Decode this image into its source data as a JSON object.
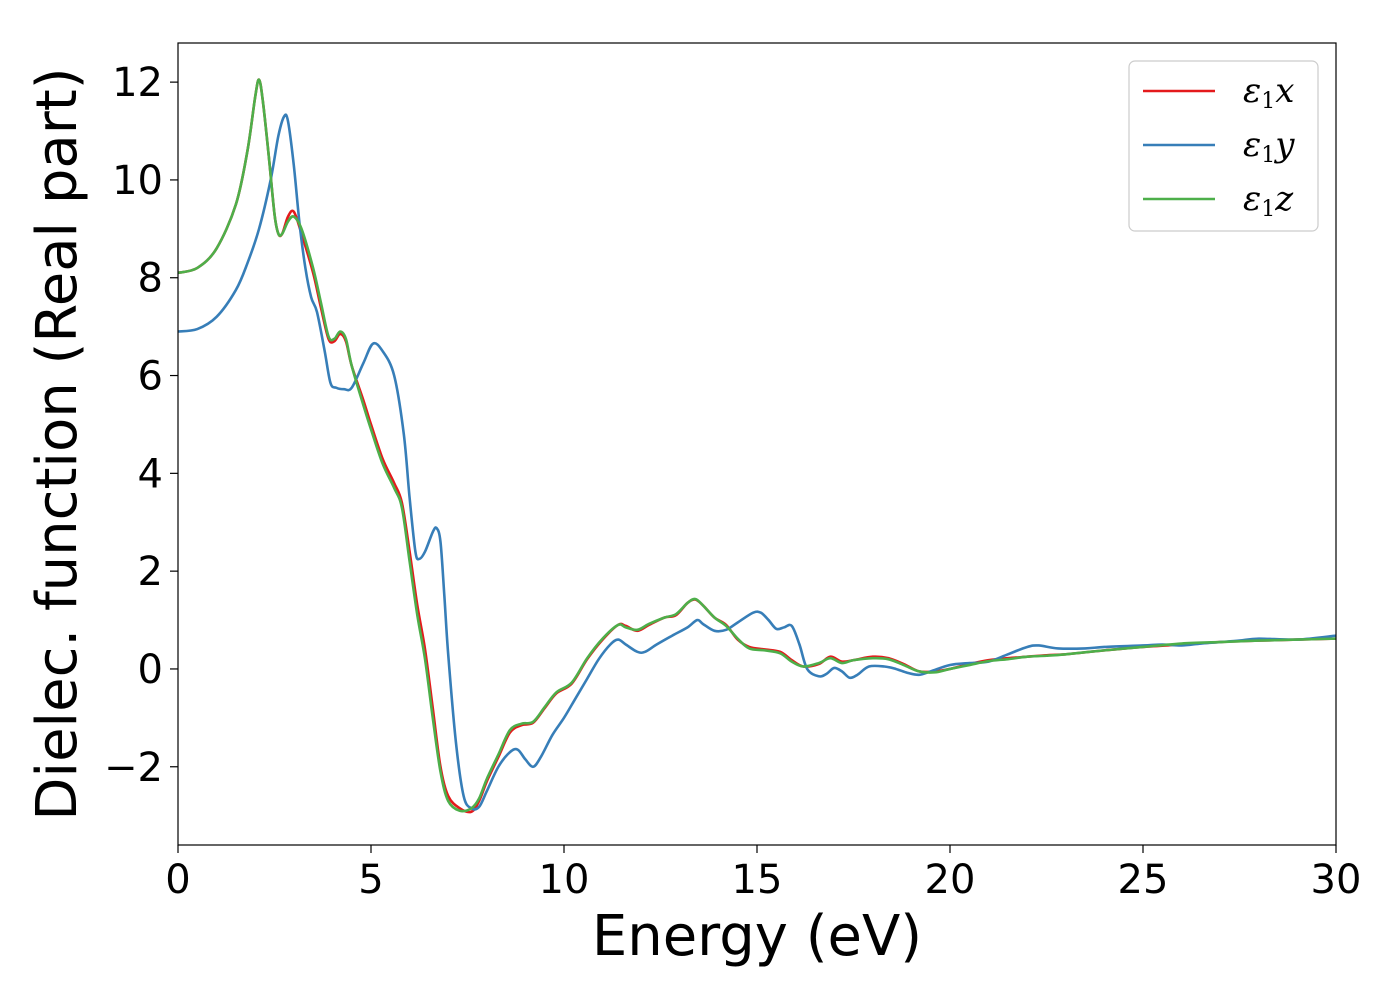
{
  "chart_data": {
    "type": "line",
    "title": "",
    "xlabel": "Energy (eV)",
    "ylabel": "Dielec. function (Real part)",
    "xlim": [
      0,
      30
    ],
    "ylim": [
      -3.6,
      12.8
    ],
    "xticks": [
      0,
      5,
      10,
      15,
      20,
      25,
      30
    ],
    "xtick_labels": [
      "0",
      "5",
      "10",
      "15",
      "20",
      "25",
      "30"
    ],
    "yticks": [
      -2,
      0,
      2,
      4,
      6,
      8,
      10,
      12
    ],
    "ytick_labels": [
      "−2",
      "0",
      "2",
      "4",
      "6",
      "8",
      "10",
      "12"
    ],
    "grid": false,
    "legend_position": "top-right",
    "colors": {
      "x": "#e41a1c",
      "y": "#377eb8",
      "z": "#4daf4a"
    },
    "series": [
      {
        "name": "ε1x",
        "legend": {
          "symbol": "ε",
          "sub": "1",
          "axis": "x"
        },
        "color": "#e41a1c",
        "points": [
          [
            0,
            8.1
          ],
          [
            0.5,
            8.2
          ],
          [
            1.0,
            8.6
          ],
          [
            1.5,
            9.5
          ],
          [
            1.8,
            10.6
          ],
          [
            2.0,
            11.7
          ],
          [
            2.1,
            12.05
          ],
          [
            2.2,
            11.6
          ],
          [
            2.35,
            10.5
          ],
          [
            2.5,
            9.3
          ],
          [
            2.6,
            8.9
          ],
          [
            2.7,
            8.9
          ],
          [
            2.85,
            9.25
          ],
          [
            3.0,
            9.35
          ],
          [
            3.2,
            8.9
          ],
          [
            3.5,
            8.1
          ],
          [
            3.7,
            7.4
          ],
          [
            3.9,
            6.75
          ],
          [
            4.05,
            6.7
          ],
          [
            4.2,
            6.85
          ],
          [
            4.35,
            6.7
          ],
          [
            4.5,
            6.2
          ],
          [
            4.8,
            5.5
          ],
          [
            5.0,
            5.0
          ],
          [
            5.3,
            4.3
          ],
          [
            5.6,
            3.8
          ],
          [
            5.8,
            3.4
          ],
          [
            6.0,
            2.4
          ],
          [
            6.2,
            1.3
          ],
          [
            6.4,
            0.4
          ],
          [
            6.6,
            -0.8
          ],
          [
            6.8,
            -2.0
          ],
          [
            7.0,
            -2.6
          ],
          [
            7.3,
            -2.85
          ],
          [
            7.6,
            -2.92
          ],
          [
            7.8,
            -2.7
          ],
          [
            8.0,
            -2.3
          ],
          [
            8.3,
            -1.8
          ],
          [
            8.6,
            -1.3
          ],
          [
            8.9,
            -1.15
          ],
          [
            9.2,
            -1.1
          ],
          [
            9.5,
            -0.8
          ],
          [
            9.8,
            -0.5
          ],
          [
            10.2,
            -0.3
          ],
          [
            10.6,
            0.2
          ],
          [
            11.0,
            0.6
          ],
          [
            11.4,
            0.9
          ],
          [
            11.6,
            0.88
          ],
          [
            11.9,
            0.78
          ],
          [
            12.2,
            0.9
          ],
          [
            12.6,
            1.05
          ],
          [
            12.9,
            1.1
          ],
          [
            13.2,
            1.35
          ],
          [
            13.4,
            1.42
          ],
          [
            13.6,
            1.3
          ],
          [
            13.9,
            1.05
          ],
          [
            14.2,
            0.9
          ],
          [
            14.5,
            0.6
          ],
          [
            14.8,
            0.45
          ],
          [
            15.2,
            0.4
          ],
          [
            15.6,
            0.35
          ],
          [
            15.9,
            0.18
          ],
          [
            16.2,
            0.05
          ],
          [
            16.6,
            0.1
          ],
          [
            16.9,
            0.25
          ],
          [
            17.2,
            0.15
          ],
          [
            17.5,
            0.18
          ],
          [
            18.0,
            0.25
          ],
          [
            18.4,
            0.22
          ],
          [
            18.8,
            0.1
          ],
          [
            19.2,
            -0.05
          ],
          [
            19.6,
            -0.05
          ],
          [
            20.0,
            0.0
          ],
          [
            20.5,
            0.1
          ],
          [
            21.0,
            0.18
          ],
          [
            21.5,
            0.22
          ],
          [
            22.0,
            0.25
          ],
          [
            22.5,
            0.28
          ],
          [
            23.0,
            0.3
          ],
          [
            24.0,
            0.38
          ],
          [
            25.0,
            0.45
          ],
          [
            26.0,
            0.5
          ],
          [
            27.0,
            0.55
          ],
          [
            28.0,
            0.58
          ],
          [
            29.0,
            0.6
          ],
          [
            30.0,
            0.62
          ]
        ]
      },
      {
        "name": "ε1y",
        "legend": {
          "symbol": "ε",
          "sub": "1",
          "axis": "y"
        },
        "color": "#377eb8",
        "points": [
          [
            0,
            6.9
          ],
          [
            0.5,
            6.95
          ],
          [
            1.0,
            7.2
          ],
          [
            1.5,
            7.75
          ],
          [
            1.8,
            8.3
          ],
          [
            2.1,
            9.0
          ],
          [
            2.4,
            10.0
          ],
          [
            2.6,
            10.9
          ],
          [
            2.75,
            11.3
          ],
          [
            2.85,
            11.2
          ],
          [
            3.0,
            10.3
          ],
          [
            3.15,
            9.1
          ],
          [
            3.3,
            8.2
          ],
          [
            3.45,
            7.6
          ],
          [
            3.6,
            7.3
          ],
          [
            3.8,
            6.5
          ],
          [
            3.95,
            5.85
          ],
          [
            4.1,
            5.75
          ],
          [
            4.3,
            5.72
          ],
          [
            4.5,
            5.75
          ],
          [
            4.8,
            6.25
          ],
          [
            5.05,
            6.65
          ],
          [
            5.3,
            6.5
          ],
          [
            5.6,
            6.0
          ],
          [
            5.85,
            4.8
          ],
          [
            6.0,
            3.5
          ],
          [
            6.15,
            2.4
          ],
          [
            6.25,
            2.25
          ],
          [
            6.4,
            2.4
          ],
          [
            6.6,
            2.8
          ],
          [
            6.7,
            2.88
          ],
          [
            6.8,
            2.6
          ],
          [
            6.9,
            1.5
          ],
          [
            7.0,
            0.3
          ],
          [
            7.2,
            -1.5
          ],
          [
            7.4,
            -2.6
          ],
          [
            7.6,
            -2.85
          ],
          [
            7.8,
            -2.82
          ],
          [
            8.0,
            -2.5
          ],
          [
            8.3,
            -2.0
          ],
          [
            8.6,
            -1.7
          ],
          [
            8.8,
            -1.65
          ],
          [
            9.0,
            -1.85
          ],
          [
            9.2,
            -2.0
          ],
          [
            9.4,
            -1.8
          ],
          [
            9.7,
            -1.35
          ],
          [
            10.0,
            -1.0
          ],
          [
            10.3,
            -0.6
          ],
          [
            10.6,
            -0.2
          ],
          [
            10.9,
            0.2
          ],
          [
            11.2,
            0.5
          ],
          [
            11.4,
            0.6
          ],
          [
            11.6,
            0.5
          ],
          [
            11.9,
            0.35
          ],
          [
            12.1,
            0.35
          ],
          [
            12.4,
            0.5
          ],
          [
            12.8,
            0.68
          ],
          [
            13.2,
            0.85
          ],
          [
            13.45,
            1.0
          ],
          [
            13.6,
            0.92
          ],
          [
            13.9,
            0.78
          ],
          [
            14.2,
            0.8
          ],
          [
            14.5,
            0.95
          ],
          [
            14.9,
            1.15
          ],
          [
            15.1,
            1.15
          ],
          [
            15.3,
            1.0
          ],
          [
            15.5,
            0.82
          ],
          [
            15.7,
            0.85
          ],
          [
            15.9,
            0.88
          ],
          [
            16.1,
            0.5
          ],
          [
            16.3,
            0.0
          ],
          [
            16.6,
            -0.15
          ],
          [
            16.8,
            -0.1
          ],
          [
            17.0,
            0.02
          ],
          [
            17.2,
            -0.05
          ],
          [
            17.4,
            -0.18
          ],
          [
            17.6,
            -0.12
          ],
          [
            17.9,
            0.05
          ],
          [
            18.3,
            0.05
          ],
          [
            18.6,
            0.0
          ],
          [
            18.9,
            -0.08
          ],
          [
            19.2,
            -0.12
          ],
          [
            19.5,
            -0.05
          ],
          [
            20.0,
            0.08
          ],
          [
            20.5,
            0.12
          ],
          [
            21.0,
            0.15
          ],
          [
            21.5,
            0.3
          ],
          [
            22.0,
            0.45
          ],
          [
            22.3,
            0.48
          ],
          [
            22.8,
            0.42
          ],
          [
            23.5,
            0.42
          ],
          [
            24.0,
            0.45
          ],
          [
            25.0,
            0.48
          ],
          [
            25.5,
            0.5
          ],
          [
            26.0,
            0.48
          ],
          [
            26.5,
            0.52
          ],
          [
            27.0,
            0.55
          ],
          [
            27.5,
            0.58
          ],
          [
            28.0,
            0.62
          ],
          [
            29.0,
            0.6
          ],
          [
            30.0,
            0.68
          ]
        ]
      },
      {
        "name": "ε1z",
        "legend": {
          "symbol": "ε",
          "sub": "1",
          "axis": "z"
        },
        "color": "#4daf4a",
        "points": [
          [
            0,
            8.1
          ],
          [
            0.5,
            8.2
          ],
          [
            1.0,
            8.6
          ],
          [
            1.5,
            9.5
          ],
          [
            1.8,
            10.6
          ],
          [
            2.0,
            11.7
          ],
          [
            2.1,
            12.05
          ],
          [
            2.2,
            11.6
          ],
          [
            2.35,
            10.5
          ],
          [
            2.5,
            9.3
          ],
          [
            2.6,
            8.9
          ],
          [
            2.7,
            8.9
          ],
          [
            2.85,
            9.15
          ],
          [
            3.0,
            9.25
          ],
          [
            3.2,
            9.0
          ],
          [
            3.5,
            8.2
          ],
          [
            3.7,
            7.5
          ],
          [
            3.9,
            6.8
          ],
          [
            4.05,
            6.75
          ],
          [
            4.2,
            6.9
          ],
          [
            4.35,
            6.75
          ],
          [
            4.5,
            6.2
          ],
          [
            4.8,
            5.4
          ],
          [
            5.0,
            4.9
          ],
          [
            5.3,
            4.2
          ],
          [
            5.6,
            3.7
          ],
          [
            5.8,
            3.3
          ],
          [
            6.0,
            2.2
          ],
          [
            6.2,
            1.1
          ],
          [
            6.4,
            0.2
          ],
          [
            6.6,
            -1.0
          ],
          [
            6.8,
            -2.1
          ],
          [
            7.0,
            -2.7
          ],
          [
            7.3,
            -2.9
          ],
          [
            7.6,
            -2.85
          ],
          [
            7.8,
            -2.65
          ],
          [
            8.0,
            -2.25
          ],
          [
            8.3,
            -1.75
          ],
          [
            8.6,
            -1.25
          ],
          [
            8.9,
            -1.12
          ],
          [
            9.2,
            -1.08
          ],
          [
            9.5,
            -0.78
          ],
          [
            9.8,
            -0.48
          ],
          [
            10.2,
            -0.28
          ],
          [
            10.6,
            0.22
          ],
          [
            11.0,
            0.62
          ],
          [
            11.4,
            0.9
          ],
          [
            11.6,
            0.85
          ],
          [
            11.9,
            0.8
          ],
          [
            12.2,
            0.92
          ],
          [
            12.6,
            1.05
          ],
          [
            12.9,
            1.12
          ],
          [
            13.2,
            1.35
          ],
          [
            13.4,
            1.43
          ],
          [
            13.6,
            1.3
          ],
          [
            13.9,
            1.05
          ],
          [
            14.2,
            0.88
          ],
          [
            14.5,
            0.62
          ],
          [
            14.8,
            0.42
          ],
          [
            15.2,
            0.38
          ],
          [
            15.6,
            0.32
          ],
          [
            15.9,
            0.15
          ],
          [
            16.2,
            0.05
          ],
          [
            16.6,
            0.12
          ],
          [
            16.9,
            0.22
          ],
          [
            17.2,
            0.12
          ],
          [
            17.5,
            0.18
          ],
          [
            18.0,
            0.22
          ],
          [
            18.4,
            0.2
          ],
          [
            18.8,
            0.08
          ],
          [
            19.2,
            -0.05
          ],
          [
            19.6,
            -0.07
          ],
          [
            20.0,
            0.0
          ],
          [
            20.5,
            0.08
          ],
          [
            21.0,
            0.16
          ],
          [
            21.5,
            0.2
          ],
          [
            22.0,
            0.25
          ],
          [
            22.5,
            0.27
          ],
          [
            23.0,
            0.3
          ],
          [
            24.0,
            0.38
          ],
          [
            25.0,
            0.45
          ],
          [
            26.0,
            0.52
          ],
          [
            27.0,
            0.55
          ],
          [
            28.0,
            0.58
          ],
          [
            29.0,
            0.6
          ],
          [
            30.0,
            0.62
          ]
        ]
      }
    ]
  }
}
